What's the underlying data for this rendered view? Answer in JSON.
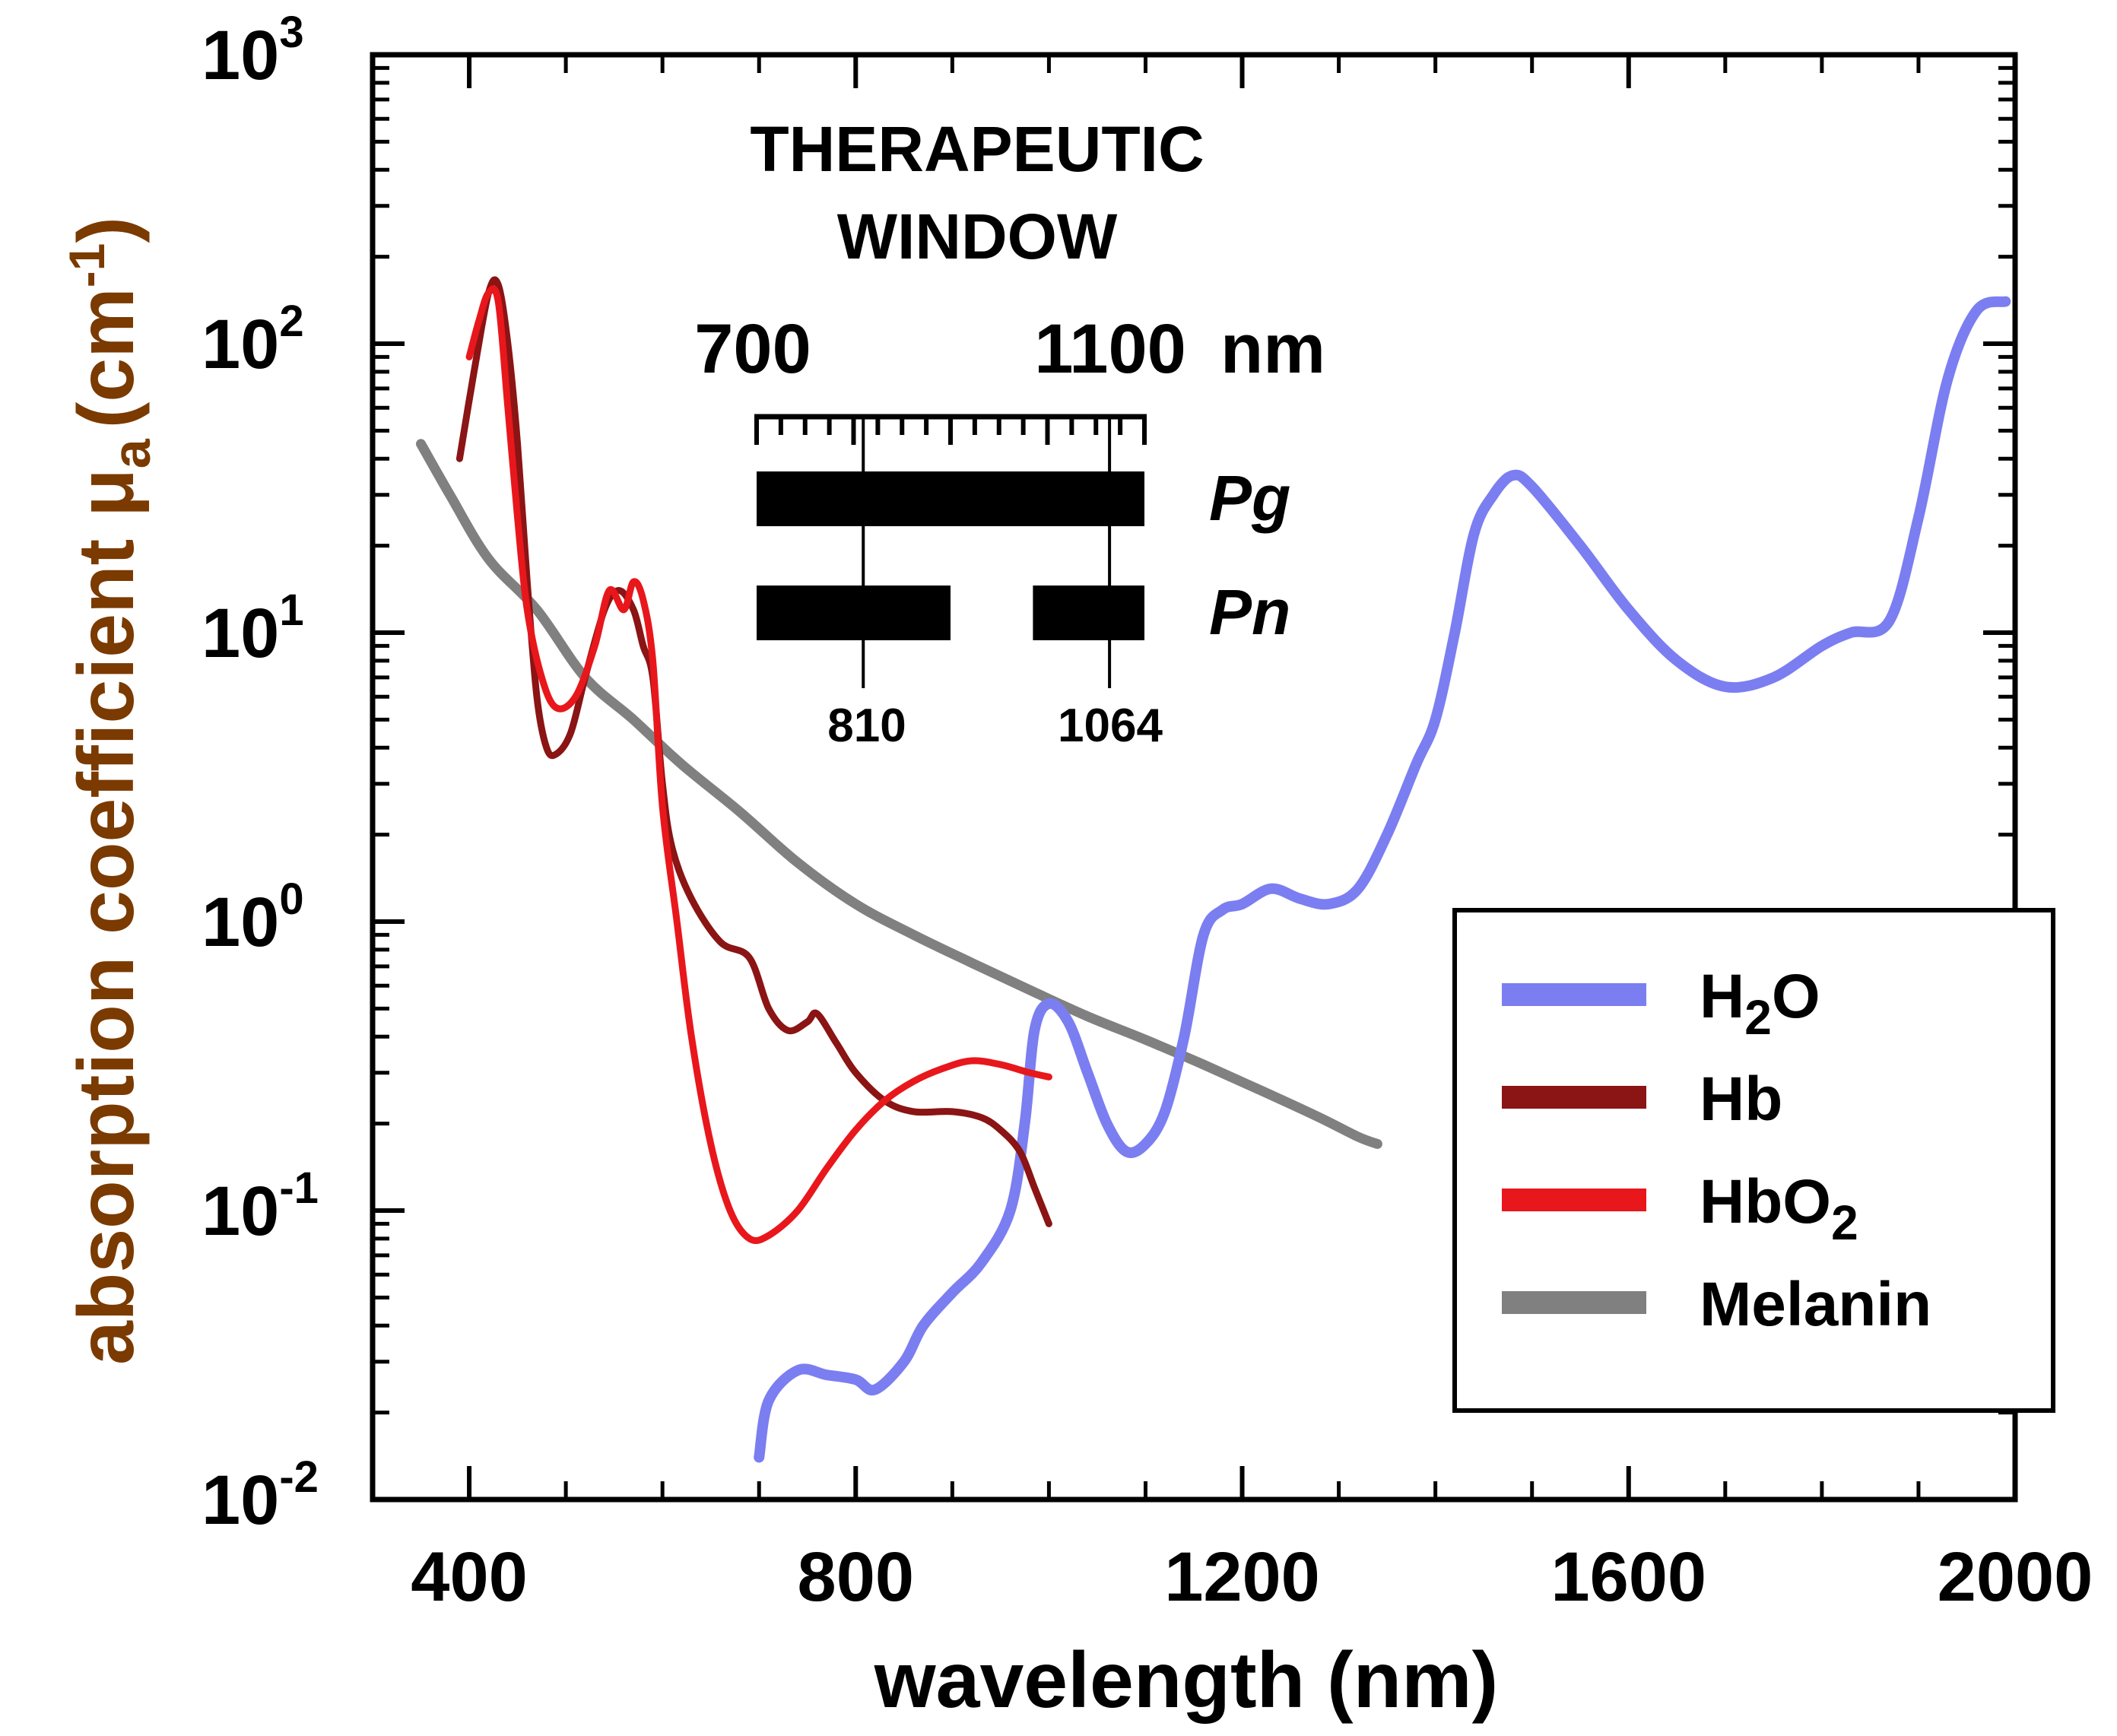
{
  "chart_data": {
    "type": "line",
    "xlabel": "wavelength (nm)",
    "ylabel": {
      "text": "absorption coefficient  μ",
      "sub": "a",
      "unit_pre": "(cm",
      "unit_exp": "-1",
      "unit_post": ")"
    },
    "x_scale": "linear",
    "y_scale": "log",
    "xlim": [
      300,
      2000
    ],
    "ylim": [
      0.01,
      1000
    ],
    "x_ticks": [
      {
        "value": 400,
        "label": "400"
      },
      {
        "value": 800,
        "label": "800"
      },
      {
        "value": 1200,
        "label": "1200"
      },
      {
        "value": 1600,
        "label": "1600"
      },
      {
        "value": 2000,
        "label": "2000"
      }
    ],
    "y_ticks": [
      {
        "value": 1000,
        "base": "10",
        "exp": "3"
      },
      {
        "value": 100,
        "base": "10",
        "exp": "2"
      },
      {
        "value": 10,
        "base": "10",
        "exp": "1"
      },
      {
        "value": 1,
        "base": "10",
        "exp": "0"
      },
      {
        "value": 0.1,
        "base": "10",
        "exp": "-1"
      },
      {
        "value": 0.01,
        "base": "10",
        "exp": "-2"
      }
    ],
    "series": [
      {
        "name": "H2O",
        "label_main": "H",
        "label_sub": "2",
        "label_end": "O",
        "color": "#7b7ef0",
        "points": [
          [
            700,
            0.014
          ],
          [
            710,
            0.022
          ],
          [
            740,
            0.028
          ],
          [
            770,
            0.027
          ],
          [
            800,
            0.026
          ],
          [
            820,
            0.024
          ],
          [
            850,
            0.03
          ],
          [
            870,
            0.04
          ],
          [
            900,
            0.052
          ],
          [
            930,
            0.066
          ],
          [
            960,
            0.1
          ],
          [
            975,
            0.2
          ],
          [
            985,
            0.42
          ],
          [
            1000,
            0.52
          ],
          [
            1020,
            0.45
          ],
          [
            1040,
            0.3
          ],
          [
            1060,
            0.2
          ],
          [
            1080,
            0.16
          ],
          [
            1100,
            0.17
          ],
          [
            1120,
            0.22
          ],
          [
            1140,
            0.4
          ],
          [
            1160,
            0.9
          ],
          [
            1180,
            1.1
          ],
          [
            1200,
            1.15
          ],
          [
            1230,
            1.3
          ],
          [
            1260,
            1.2
          ],
          [
            1290,
            1.15
          ],
          [
            1320,
            1.3
          ],
          [
            1350,
            2.0
          ],
          [
            1380,
            3.5
          ],
          [
            1400,
            5.0
          ],
          [
            1420,
            10
          ],
          [
            1440,
            22
          ],
          [
            1460,
            30
          ],
          [
            1480,
            35
          ],
          [
            1500,
            32
          ],
          [
            1550,
            20
          ],
          [
            1600,
            12
          ],
          [
            1650,
            8
          ],
          [
            1700,
            6.5
          ],
          [
            1750,
            7
          ],
          [
            1800,
            9
          ],
          [
            1830,
            10
          ],
          [
            1870,
            11
          ],
          [
            1900,
            25
          ],
          [
            1930,
            75
          ],
          [
            1960,
            130
          ],
          [
            1990,
            140
          ]
        ]
      },
      {
        "name": "Hb",
        "label_main": "Hb",
        "label_sub": "",
        "label_end": "",
        "color": "#8b1414",
        "points": [
          [
            390,
            40
          ],
          [
            405,
            80
          ],
          [
            420,
            150
          ],
          [
            430,
            160
          ],
          [
            440,
            100
          ],
          [
            450,
            45
          ],
          [
            460,
            15
          ],
          [
            470,
            6
          ],
          [
            480,
            4
          ],
          [
            490,
            3.8
          ],
          [
            505,
            4.5
          ],
          [
            520,
            7
          ],
          [
            540,
            12
          ],
          [
            555,
            14
          ],
          [
            570,
            12
          ],
          [
            580,
            9
          ],
          [
            590,
            7
          ],
          [
            600,
            3
          ],
          [
            610,
            1.8
          ],
          [
            630,
            1.2
          ],
          [
            660,
            0.85
          ],
          [
            690,
            0.75
          ],
          [
            710,
            0.5
          ],
          [
            730,
            0.42
          ],
          [
            750,
            0.45
          ],
          [
            760,
            0.48
          ],
          [
            780,
            0.38
          ],
          [
            800,
            0.3
          ],
          [
            830,
            0.24
          ],
          [
            860,
            0.22
          ],
          [
            900,
            0.22
          ],
          [
            930,
            0.21
          ],
          [
            950,
            0.19
          ],
          [
            970,
            0.16
          ],
          [
            985,
            0.12
          ],
          [
            1000,
            0.09
          ]
        ]
      },
      {
        "name": "HbO2",
        "label_main": "HbO",
        "label_sub": "2",
        "label_end": "",
        "color": "#e8171c",
        "points": [
          [
            400,
            90
          ],
          [
            410,
            120
          ],
          [
            420,
            150
          ],
          [
            430,
            140
          ],
          [
            440,
            60
          ],
          [
            450,
            25
          ],
          [
            460,
            12
          ],
          [
            475,
            7
          ],
          [
            490,
            5.5
          ],
          [
            510,
            6
          ],
          [
            530,
            9
          ],
          [
            545,
            14
          ],
          [
            560,
            12
          ],
          [
            570,
            15
          ],
          [
            580,
            13
          ],
          [
            590,
            8
          ],
          [
            600,
            2.5
          ],
          [
            615,
            1.0
          ],
          [
            630,
            0.4
          ],
          [
            650,
            0.17
          ],
          [
            670,
            0.1
          ],
          [
            690,
            0.08
          ],
          [
            710,
            0.082
          ],
          [
            740,
            0.1
          ],
          [
            770,
            0.14
          ],
          [
            800,
            0.19
          ],
          [
            830,
            0.24
          ],
          [
            860,
            0.28
          ],
          [
            890,
            0.31
          ],
          [
            920,
            0.33
          ],
          [
            950,
            0.32
          ],
          [
            980,
            0.3
          ],
          [
            1000,
            0.29
          ]
        ]
      },
      {
        "name": "Melanin",
        "label_main": "Melanin",
        "label_sub": "",
        "label_end": "",
        "color": "#808080",
        "points": [
          [
            350,
            45
          ],
          [
            380,
            30
          ],
          [
            420,
            18
          ],
          [
            470,
            12
          ],
          [
            520,
            7
          ],
          [
            570,
            5
          ],
          [
            620,
            3.5
          ],
          [
            680,
            2.4
          ],
          [
            740,
            1.6
          ],
          [
            800,
            1.15
          ],
          [
            860,
            0.9
          ],
          [
            920,
            0.72
          ],
          [
            980,
            0.58
          ],
          [
            1040,
            0.47
          ],
          [
            1100,
            0.39
          ],
          [
            1160,
            0.32
          ],
          [
            1220,
            0.26
          ],
          [
            1280,
            0.21
          ],
          [
            1320,
            0.18
          ],
          [
            1340,
            0.17
          ]
        ]
      }
    ],
    "legend_position": "right",
    "inset": {
      "title_line1": "THERAPEUTIC",
      "title_line2": "WINDOW",
      "range_start": "700",
      "range_end": "1100",
      "range_unit": "nm",
      "range_nm": [
        700,
        1100
      ],
      "marker1_label": "810",
      "marker1_nm": 810,
      "marker2_label": "1064",
      "marker2_nm": 1064,
      "bars": [
        {
          "label": "Pg",
          "segments": [
            [
              700,
              1100
            ]
          ]
        },
        {
          "label": "Pn",
          "segments": [
            [
              700,
              900
            ],
            [
              985,
              1100
            ]
          ]
        }
      ]
    }
  }
}
